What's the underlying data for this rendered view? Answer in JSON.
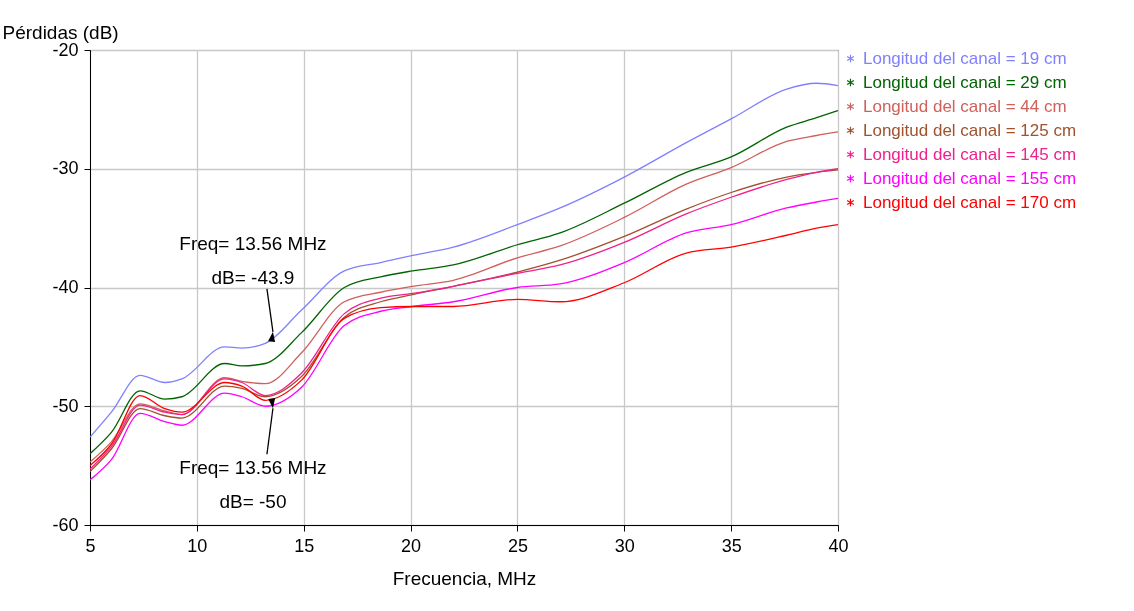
{
  "chart_data": {
    "type": "line",
    "xlabel": "Frecuencia, MHz",
    "ylabel": "Pérdidas (dB)",
    "x": [
      5,
      6,
      7.34,
      8.5,
      9.3,
      11.3,
      12.1,
      13.2,
      14.9,
      16.9,
      18.6,
      20.1,
      22,
      25,
      27,
      30,
      32.9,
      35,
      37.6,
      39,
      40
    ],
    "series": [
      {
        "name": "Longitud del canal = 19 cm",
        "color": "#8080ff",
        "values": [
          -52.6,
          -50.5,
          -47.4,
          -48.0,
          -47.7,
          -45.0,
          -45.1,
          -44.7,
          -41.9,
          -38.6,
          -37.9,
          -37.3,
          -36.6,
          -34.7,
          -33.3,
          -30.7,
          -27.8,
          -25.8,
          -23.3,
          -22.8,
          -23.0
        ]
      },
      {
        "name": "Longitud del canal = 29 cm",
        "color": "#006400",
        "values": [
          -54.0,
          -52.2,
          -48.7,
          -49.4,
          -49.2,
          -46.4,
          -46.6,
          -46.4,
          -43.8,
          -40.0,
          -39.1,
          -38.6,
          -38.1,
          -36.4,
          -35.4,
          -32.9,
          -30.3,
          -29.0,
          -26.5,
          -25.7,
          -25.1
        ]
      },
      {
        "name": "Longitud del canal = 44 cm",
        "color": "#d0605c",
        "values": [
          -54.7,
          -53.0,
          -49.8,
          -50.4,
          -50.7,
          -47.6,
          -47.9,
          -48.1,
          -45.5,
          -41.2,
          -40.4,
          -39.9,
          -39.4,
          -37.5,
          -36.5,
          -34.1,
          -31.3,
          -29.9,
          -27.7,
          -27.2,
          -26.9
        ]
      },
      {
        "name": "Longitud del canal = 125 cm",
        "color": "#a0522d",
        "values": [
          -55.5,
          -53.6,
          -50.2,
          -50.8,
          -51.0,
          -48.3,
          -48.5,
          -49.2,
          -47.5,
          -42.5,
          -41.2,
          -40.6,
          -39.9,
          -38.7,
          -37.7,
          -35.7,
          -33.4,
          -32.0,
          -30.7,
          -30.3,
          -30.1
        ]
      },
      {
        "name": "Longitud del canal = 145 cm",
        "color": "#f0208c",
        "values": [
          -55.3,
          -53.4,
          -49.9,
          -50.5,
          -50.7,
          -47.7,
          -48.0,
          -49.1,
          -47.2,
          -42.2,
          -40.9,
          -40.5,
          -39.9,
          -38.8,
          -38.1,
          -36.2,
          -33.8,
          -32.4,
          -30.9,
          -30.3,
          -30.0
        ]
      },
      {
        "name": "Longitud del canal = 155 cm",
        "color": "#ff00ff",
        "values": [
          -56.2,
          -54.5,
          -50.6,
          -51.3,
          -51.6,
          -48.9,
          -49.2,
          -50.0,
          -48.4,
          -43.2,
          -42.0,
          -41.6,
          -41.2,
          -40.0,
          -39.7,
          -37.9,
          -35.4,
          -34.7,
          -33.3,
          -32.8,
          -32.5
        ]
      },
      {
        "name": "Longitud del canal = 170 cm",
        "color": "#ff0000",
        "values": [
          -55.0,
          -53.2,
          -49.1,
          -50.2,
          -50.5,
          -48.0,
          -48.3,
          -49.5,
          -47.8,
          -42.6,
          -41.7,
          -41.6,
          -41.6,
          -41.0,
          -41.2,
          -39.6,
          -37.1,
          -36.6,
          -35.6,
          -35.0,
          -34.7
        ]
      }
    ],
    "xlim": [
      5,
      40
    ],
    "xticks": [
      5,
      10,
      15,
      20,
      25,
      30,
      35,
      40
    ],
    "ylim": [
      -60,
      -20
    ],
    "yticks": [
      -60,
      -50,
      -40,
      -30,
      -20
    ],
    "grid": true,
    "legend": "right",
    "annotations": [
      {
        "text": "Freq= 13.56 MHz\ndB= -43.9",
        "x": 13.56,
        "y": -43.9
      },
      {
        "text": "Freq= 13.56 MHz\ndB= -50",
        "x": 13.56,
        "y": -50
      }
    ]
  }
}
